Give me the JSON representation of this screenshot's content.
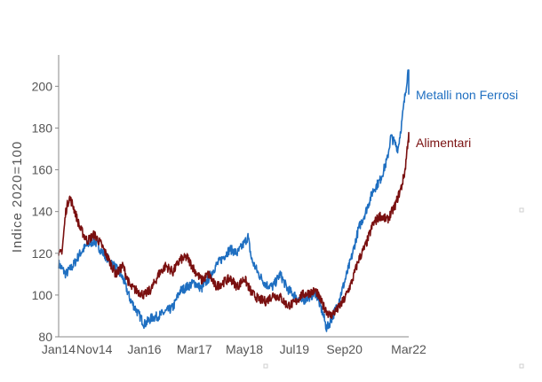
{
  "chart_data": {
    "type": "line",
    "title": "",
    "xlabel": "",
    "ylabel": "Indice 2020=100",
    "xlim": [
      "2014-01",
      "2022-03"
    ],
    "ylim": [
      80,
      215
    ],
    "yticks": [
      80,
      100,
      120,
      140,
      160,
      180,
      200
    ],
    "xticks": [
      {
        "label": "Jan14",
        "x": "2014-01"
      },
      {
        "label": "Nov14",
        "x": "2014-11"
      },
      {
        "label": "Jan16",
        "x": "2016-01"
      },
      {
        "label": "Mar17",
        "x": "2017-03"
      },
      {
        "label": "May18",
        "x": "2018-05"
      },
      {
        "label": "Jul19",
        "x": "2019-07"
      },
      {
        "label": "Sep20",
        "x": "2020-09"
      },
      {
        "label": "Mar22",
        "x": "2022-03"
      }
    ],
    "grid": false,
    "legend": "direct labels at line ends",
    "series": [
      {
        "name": "Metalli non Ferrosi",
        "color": "#1f6fc1",
        "points": [
          [
            "2014-01",
            115
          ],
          [
            "2014-03",
            110
          ],
          [
            "2014-05",
            114
          ],
          [
            "2014-07",
            120
          ],
          [
            "2014-09",
            124
          ],
          [
            "2014-11",
            126
          ],
          [
            "2015-01",
            121
          ],
          [
            "2015-03",
            117
          ],
          [
            "2015-05",
            113
          ],
          [
            "2015-07",
            108
          ],
          [
            "2015-09",
            98
          ],
          [
            "2015-11",
            92
          ],
          [
            "2016-01",
            86
          ],
          [
            "2016-03",
            89
          ],
          [
            "2016-05",
            90
          ],
          [
            "2016-07",
            92
          ],
          [
            "2016-09",
            94
          ],
          [
            "2016-11",
            102
          ],
          [
            "2017-01",
            104
          ],
          [
            "2017-03",
            106
          ],
          [
            "2017-05",
            103
          ],
          [
            "2017-07",
            108
          ],
          [
            "2017-09",
            114
          ],
          [
            "2017-11",
            118
          ],
          [
            "2018-01",
            122
          ],
          [
            "2018-03",
            120
          ],
          [
            "2018-05",
            125
          ],
          [
            "2018-06",
            128
          ],
          [
            "2018-07",
            117
          ],
          [
            "2018-09",
            110
          ],
          [
            "2018-11",
            105
          ],
          [
            "2019-01",
            104
          ],
          [
            "2019-03",
            110
          ],
          [
            "2019-05",
            103
          ],
          [
            "2019-07",
            100
          ],
          [
            "2019-09",
            97
          ],
          [
            "2019-11",
            99
          ],
          [
            "2020-01",
            101
          ],
          [
            "2020-03",
            91
          ],
          [
            "2020-04",
            84
          ],
          [
            "2020-05",
            87
          ],
          [
            "2020-07",
            95
          ],
          [
            "2020-09",
            106
          ],
          [
            "2020-11",
            118
          ],
          [
            "2021-01",
            132
          ],
          [
            "2021-03",
            140
          ],
          [
            "2021-05",
            150
          ],
          [
            "2021-07",
            155
          ],
          [
            "2021-09",
            165
          ],
          [
            "2021-10",
            176
          ],
          [
            "2021-12",
            170
          ],
          [
            "2022-01",
            182
          ],
          [
            "2022-02",
            196
          ],
          [
            "2022-03",
            210
          ],
          [
            "2022-03",
            196
          ]
        ]
      },
      {
        "name": "Alimentari",
        "color": "#7a1010",
        "points": [
          [
            "2014-01",
            118
          ],
          [
            "2014-02",
            122
          ],
          [
            "2014-03",
            140
          ],
          [
            "2014-04",
            147
          ],
          [
            "2014-05",
            143
          ],
          [
            "2014-07",
            132
          ],
          [
            "2014-09",
            126
          ],
          [
            "2014-11",
            129
          ],
          [
            "2015-01",
            124
          ],
          [
            "2015-03",
            117
          ],
          [
            "2015-05",
            110
          ],
          [
            "2015-07",
            114
          ],
          [
            "2015-09",
            104
          ],
          [
            "2015-11",
            102
          ],
          [
            "2016-01",
            100
          ],
          [
            "2016-03",
            103
          ],
          [
            "2016-05",
            110
          ],
          [
            "2016-07",
            114
          ],
          [
            "2016-09",
            111
          ],
          [
            "2016-11",
            117
          ],
          [
            "2017-01",
            118
          ],
          [
            "2017-03",
            112
          ],
          [
            "2017-05",
            107
          ],
          [
            "2017-07",
            110
          ],
          [
            "2017-09",
            104
          ],
          [
            "2017-11",
            106
          ],
          [
            "2018-01",
            108
          ],
          [
            "2018-03",
            104
          ],
          [
            "2018-05",
            108
          ],
          [
            "2018-07",
            101
          ],
          [
            "2018-09",
            98
          ],
          [
            "2018-11",
            97
          ],
          [
            "2019-01",
            100
          ],
          [
            "2019-03",
            99
          ],
          [
            "2019-05",
            95
          ],
          [
            "2019-07",
            96
          ],
          [
            "2019-09",
            100
          ],
          [
            "2019-11",
            101
          ],
          [
            "2020-01",
            102
          ],
          [
            "2020-03",
            95
          ],
          [
            "2020-05",
            90
          ],
          [
            "2020-07",
            93
          ],
          [
            "2020-09",
            98
          ],
          [
            "2020-11",
            106
          ],
          [
            "2021-01",
            117
          ],
          [
            "2021-03",
            124
          ],
          [
            "2021-05",
            134
          ],
          [
            "2021-07",
            138
          ],
          [
            "2021-09",
            136
          ],
          [
            "2021-11",
            142
          ],
          [
            "2022-01",
            152
          ],
          [
            "2022-02",
            160
          ],
          [
            "2022-03",
            178
          ],
          [
            "2022-03",
            173
          ]
        ]
      }
    ]
  }
}
